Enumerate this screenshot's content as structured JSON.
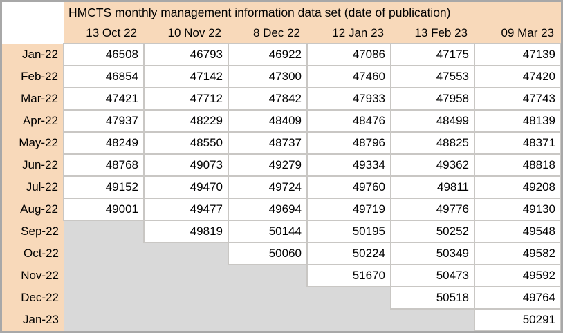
{
  "table": {
    "title": "HMCTS monthly management information data set (date of publication)",
    "columns": [
      "13 Oct 22",
      "10 Nov 22",
      "8 Dec 22",
      "12 Jan 23",
      "13 Feb 23",
      "09 Mar 23"
    ],
    "rows": [
      {
        "label": "Jan-22",
        "values": [
          46508,
          46793,
          46922,
          47086,
          47175,
          47139
        ]
      },
      {
        "label": "Feb-22",
        "values": [
          46854,
          47142,
          47300,
          47460,
          47553,
          47420
        ]
      },
      {
        "label": "Mar-22",
        "values": [
          47421,
          47712,
          47842,
          47933,
          47958,
          47743
        ]
      },
      {
        "label": "Apr-22",
        "values": [
          47937,
          48229,
          48409,
          48476,
          48499,
          48139
        ]
      },
      {
        "label": "May-22",
        "values": [
          48249,
          48550,
          48737,
          48796,
          48825,
          48371
        ]
      },
      {
        "label": "Jun-22",
        "values": [
          48768,
          49073,
          49279,
          49334,
          49362,
          48818
        ]
      },
      {
        "label": "Jul-22",
        "values": [
          49152,
          49470,
          49724,
          49760,
          49811,
          49208
        ]
      },
      {
        "label": "Aug-22",
        "values": [
          49001,
          49477,
          49694,
          49719,
          49776,
          49130
        ]
      },
      {
        "label": "Sep-22",
        "values": [
          null,
          49819,
          50144,
          50195,
          50252,
          49548
        ]
      },
      {
        "label": "Oct-22",
        "values": [
          null,
          null,
          50060,
          50224,
          50349,
          49582
        ]
      },
      {
        "label": "Nov-22",
        "values": [
          null,
          null,
          null,
          51670,
          50473,
          49592
        ]
      },
      {
        "label": "Dec-22",
        "values": [
          null,
          null,
          null,
          null,
          50518,
          49764
        ]
      },
      {
        "label": "Jan-23",
        "values": [
          null,
          null,
          null,
          null,
          null,
          50291
        ]
      }
    ]
  },
  "colors": {
    "peach": "#f8d9ba",
    "empty-gray": "#d9d9d9",
    "grid-line": "#c9c7c4",
    "frame-gray": "#a8a8a8",
    "cell-white": "#ffffff",
    "text-black": "#000000"
  },
  "chart_data": {
    "type": "table",
    "title": "HMCTS monthly management information data set (date of publication)",
    "categories": [
      "Jan-22",
      "Feb-22",
      "Mar-22",
      "Apr-22",
      "May-22",
      "Jun-22",
      "Jul-22",
      "Aug-22",
      "Sep-22",
      "Oct-22",
      "Nov-22",
      "Dec-22",
      "Jan-23"
    ],
    "series": [
      {
        "name": "13 Oct 22",
        "values": [
          46508,
          46854,
          47421,
          47937,
          48249,
          48768,
          49152,
          49001,
          null,
          null,
          null,
          null,
          null
        ]
      },
      {
        "name": "10 Nov 22",
        "values": [
          46793,
          47142,
          47712,
          48229,
          48550,
          49073,
          49470,
          49477,
          49819,
          null,
          null,
          null,
          null
        ]
      },
      {
        "name": "8 Dec 22",
        "values": [
          46922,
          47300,
          47842,
          48409,
          48737,
          49279,
          49724,
          49694,
          50144,
          50060,
          null,
          null,
          null
        ]
      },
      {
        "name": "12 Jan 23",
        "values": [
          47086,
          47460,
          47933,
          48476,
          48796,
          49334,
          49760,
          49719,
          50195,
          50224,
          51670,
          null,
          null
        ]
      },
      {
        "name": "13 Feb 23",
        "values": [
          47175,
          47553,
          47958,
          48499,
          48825,
          49362,
          49811,
          49776,
          50252,
          50349,
          50473,
          50518,
          null
        ]
      },
      {
        "name": "09 Mar 23",
        "values": [
          47139,
          47420,
          47743,
          48139,
          48371,
          48818,
          49208,
          49130,
          49548,
          49582,
          49592,
          49764,
          50291
        ]
      }
    ],
    "layout": {
      "empty_cells_shown_as": "gray",
      "grid": "light-gray lines around populated cells only"
    }
  }
}
